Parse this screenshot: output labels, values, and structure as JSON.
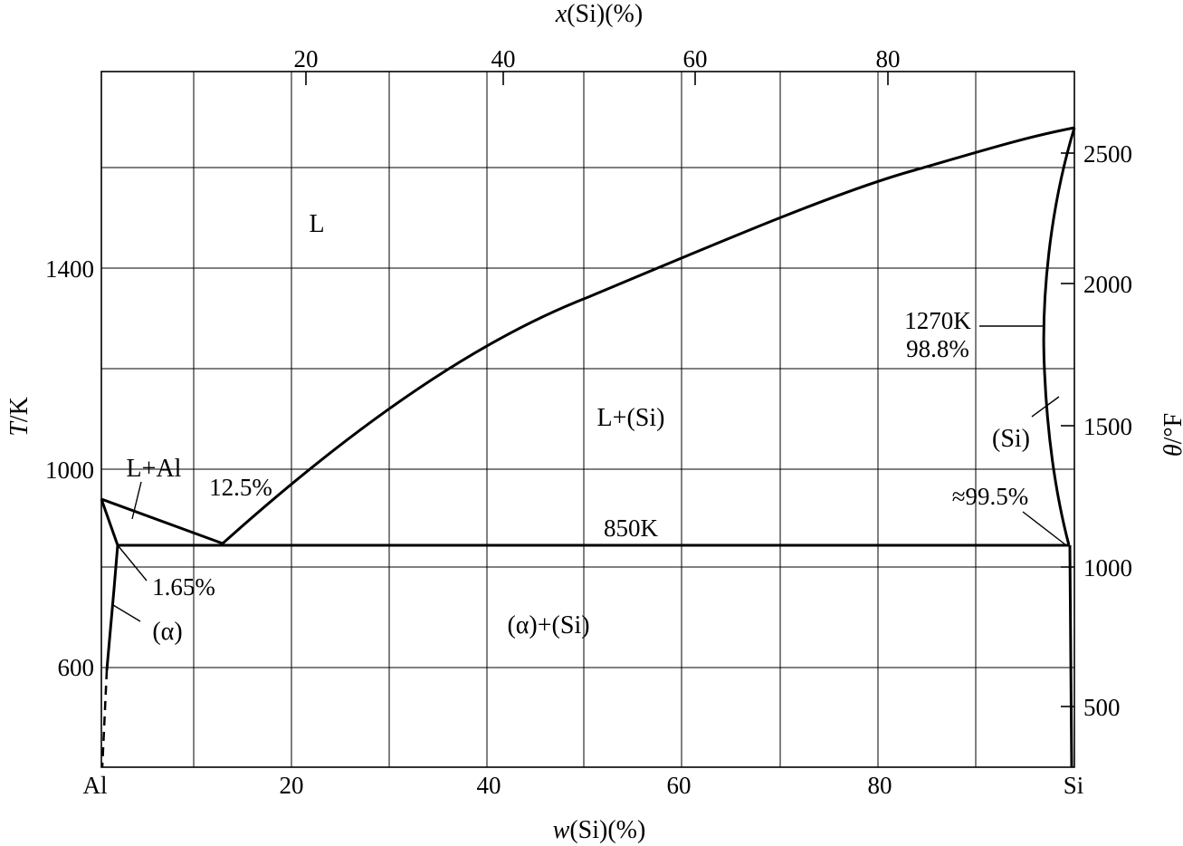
{
  "axes": {
    "bottom_title_prefix": "w",
    "bottom_title_suffix": "(Si)(%)",
    "top_title_prefix": "x",
    "top_title_suffix": "(Si)(%)",
    "left_title_prefix": "T",
    "left_title_suffix": "/K",
    "right_title_prefix": "θ",
    "right_title_suffix": "/°F",
    "bottom_ticks": [
      "20",
      "40",
      "60",
      "80"
    ],
    "bottom_endpoints": {
      "left": "Al",
      "right": "Si"
    },
    "top_ticks": [
      "20",
      "40",
      "60",
      "80"
    ],
    "left_ticks": [
      "600",
      "1000",
      "1400"
    ],
    "right_ticks": [
      "500",
      "1000",
      "1500",
      "2000",
      "2500"
    ]
  },
  "regions": {
    "liquid": "L",
    "liquid_plus_al": "L+Al",
    "liquid_plus_si": "L+(Si)",
    "alpha": "(α)",
    "alpha_plus_si": "(α)+(Si)",
    "si": "(Si)"
  },
  "annotations": {
    "eutectic_comp": "12.5%",
    "eutectic_temp": "850K",
    "alpha_solubility": "1.65%",
    "si_solidus_temp": "1270K",
    "si_solidus_comp": "98.8%",
    "si_eutectic_comp": "≈99.5%"
  },
  "diagram_data": {
    "type": "phase-diagram",
    "x_unit": "w(Si) %",
    "y_unit": "K",
    "xlim": [
      0,
      100
    ],
    "ylim": [
      400,
      1780
    ],
    "x_grid_step": 10,
    "y_grid_step": 200,
    "liquidus_al_side": [
      [
        0,
        933
      ],
      [
        12.5,
        850
      ]
    ],
    "liquidus_si_side": [
      [
        12.5,
        850
      ],
      [
        20,
        940
      ],
      [
        30,
        1075
      ],
      [
        40,
        1200
      ],
      [
        50,
        1312
      ],
      [
        60,
        1410
      ],
      [
        70,
        1493
      ],
      [
        80,
        1568
      ],
      [
        90,
        1636
      ],
      [
        100,
        1687
      ]
    ],
    "eutectic_line": [
      [
        1.65,
        850
      ],
      [
        99.5,
        850
      ]
    ],
    "alpha_solidus": [
      [
        0,
        933
      ],
      [
        1.65,
        850
      ]
    ],
    "alpha_solvus": [
      [
        1.65,
        850
      ],
      [
        1.4,
        800
      ],
      [
        0.6,
        600
      ]
    ],
    "alpha_solvus_dashed": [
      [
        0.6,
        600
      ],
      [
        0.2,
        400
      ]
    ],
    "si_solidus": [
      [
        100,
        1687
      ],
      [
        98.8,
        1270
      ],
      [
        99.5,
        850
      ]
    ],
    "si_solvus": [
      [
        99.5,
        850
      ],
      [
        99.5,
        400
      ]
    ]
  }
}
